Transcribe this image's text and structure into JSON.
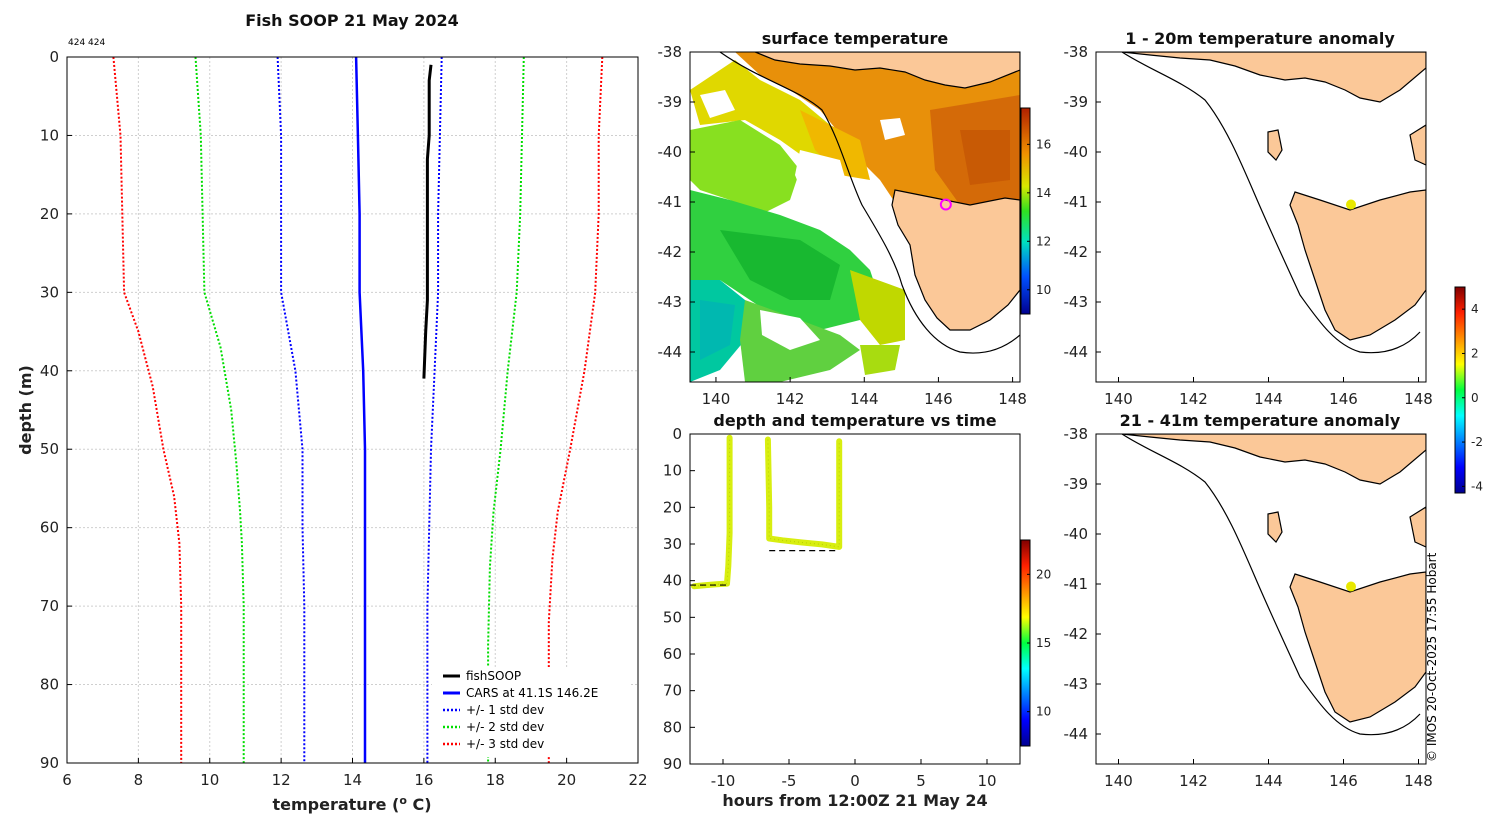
{
  "figure": {
    "title": "Fish SOOP 21 May 2024",
    "small_label": "424 424",
    "credit": "© IMOS 20-Oct-2025 17:55 Hobart"
  },
  "chart_data": [
    {
      "id": "profile",
      "type": "line",
      "title": "Fish SOOP 21 May 2024",
      "xlabel": "temperature (o C)",
      "xlabel_main": "temperature (",
      "xlabel_sup": "o",
      "xlabel_end": " C)",
      "ylabel": "depth (m)",
      "xlim": [
        6,
        22
      ],
      "ylim": [
        0,
        90
      ],
      "y_inverted": true,
      "xticks": [
        6,
        8,
        10,
        12,
        14,
        16,
        18,
        20,
        22
      ],
      "yticks": [
        0,
        10,
        20,
        30,
        40,
        50,
        60,
        70,
        80,
        90
      ],
      "grid": true,
      "legend_position": "bottom-right",
      "series": [
        {
          "name": "fishSOOP",
          "color": "#000000",
          "style": "solid",
          "width": 3,
          "points": [
            [
              16.2,
              1
            ],
            [
              16.15,
              3
            ],
            [
              16.15,
              6
            ],
            [
              16.15,
              10
            ],
            [
              16.1,
              13
            ],
            [
              16.1,
              18
            ],
            [
              16.1,
              23
            ],
            [
              16.1,
              28
            ],
            [
              16.1,
              31
            ],
            [
              16.05,
              35
            ],
            [
              16.0,
              41
            ]
          ]
        },
        {
          "name": "CARS at 41.1S 146.2E",
          "color": "#0000ff",
          "style": "solid",
          "width": 2.5,
          "points": [
            [
              14.1,
              0
            ],
            [
              14.15,
              10
            ],
            [
              14.2,
              20
            ],
            [
              14.2,
              30
            ],
            [
              14.3,
              40
            ],
            [
              14.35,
              50
            ],
            [
              14.35,
              60
            ],
            [
              14.35,
              70
            ],
            [
              14.35,
              80
            ],
            [
              14.35,
              90
            ]
          ]
        },
        {
          "name": "+/- 1 std dev",
          "color": "#0000ff",
          "style": "dotted",
          "width": 2,
          "points": [
            [
              11.9,
              0
            ],
            [
              12.0,
              10
            ],
            [
              12.0,
              20
            ],
            [
              12.0,
              30
            ],
            [
              12.4,
              40
            ],
            [
              12.6,
              50
            ],
            [
              12.6,
              60
            ],
            [
              12.65,
              70
            ],
            [
              12.65,
              80
            ],
            [
              12.65,
              90
            ]
          ],
          "points2": [
            [
              16.5,
              0
            ],
            [
              16.45,
              10
            ],
            [
              16.4,
              20
            ],
            [
              16.4,
              30
            ],
            [
              16.3,
              40
            ],
            [
              16.2,
              50
            ],
            [
              16.15,
              60
            ],
            [
              16.1,
              70
            ],
            [
              16.1,
              80
            ],
            [
              16.1,
              90
            ]
          ]
        },
        {
          "name": "+/- 2 std dev",
          "color": "#00dd00",
          "style": "dotted",
          "width": 2,
          "points": [
            [
              9.6,
              0
            ],
            [
              9.75,
              10
            ],
            [
              9.8,
              20
            ],
            [
              9.85,
              30
            ],
            [
              10.3,
              37
            ],
            [
              10.6,
              45
            ],
            [
              10.75,
              52
            ],
            [
              10.85,
              58
            ],
            [
              10.9,
              62
            ],
            [
              10.95,
              70
            ],
            [
              10.95,
              90
            ]
          ],
          "points2": [
            [
              18.8,
              0
            ],
            [
              18.75,
              10
            ],
            [
              18.7,
              20
            ],
            [
              18.6,
              30
            ],
            [
              18.35,
              40
            ],
            [
              18.15,
              50
            ],
            [
              17.95,
              58
            ],
            [
              17.85,
              65
            ],
            [
              17.8,
              75
            ],
            [
              17.8,
              90
            ]
          ]
        },
        {
          "name": "+/- 3 std dev",
          "color": "#ff0000",
          "style": "dotted",
          "width": 2,
          "points": [
            [
              7.3,
              0
            ],
            [
              7.5,
              10
            ],
            [
              7.55,
              20
            ],
            [
              7.6,
              30
            ],
            [
              8.0,
              35
            ],
            [
              8.4,
              42
            ],
            [
              8.7,
              50
            ],
            [
              9.0,
              56
            ],
            [
              9.15,
              62
            ],
            [
              9.2,
              70
            ],
            [
              9.2,
              90
            ]
          ],
          "points2": [
            [
              21.0,
              0
            ],
            [
              20.9,
              10
            ],
            [
              20.9,
              20
            ],
            [
              20.8,
              30
            ],
            [
              20.5,
              40
            ],
            [
              20.1,
              50
            ],
            [
              19.75,
              58
            ],
            [
              19.6,
              64
            ],
            [
              19.5,
              72
            ],
            [
              19.5,
              90
            ]
          ]
        }
      ]
    },
    {
      "id": "sst_map",
      "type": "heatmap",
      "title": "surface temperature",
      "xlim": [
        139.3,
        148.2
      ],
      "ylim": [
        -44.6,
        -38
      ],
      "xticks": [
        140,
        142,
        144,
        146,
        148
      ],
      "yticks": [
        -38,
        -39,
        -40,
        -41,
        -42,
        -43,
        -44
      ],
      "colorbar": {
        "range": [
          9,
          17.5
        ],
        "ticks": [
          10,
          12,
          14,
          16
        ]
      },
      "marker": {
        "lon": 146.2,
        "lat": -41.05
      }
    },
    {
      "id": "depth_time",
      "type": "scatter",
      "title": "depth and temperature vs time",
      "xlabel": "hours from 12:00Z 21 May 24",
      "xlim": [
        -12.5,
        12.5
      ],
      "ylim": [
        0,
        90
      ],
      "y_inverted": true,
      "xticks": [
        -10,
        -5,
        0,
        5,
        10
      ],
      "yticks": [
        0,
        10,
        20,
        30,
        40,
        50,
        60,
        70,
        80,
        90
      ],
      "colorbar": {
        "range": [
          7.5,
          22.5
        ],
        "ticks": [
          10,
          15,
          20
        ]
      },
      "segments": [
        [
          [
            -12.2,
            41.5
          ],
          [
            -11.5,
            41.3
          ],
          [
            -10.5,
            41.0
          ],
          [
            -9.7,
            40.8
          ],
          [
            -9.6,
            36
          ],
          [
            -9.55,
            32
          ],
          [
            -9.5,
            27
          ],
          [
            -9.5,
            20
          ],
          [
            -9.5,
            12
          ],
          [
            -9.5,
            5
          ],
          [
            -9.5,
            1
          ]
        ],
        [
          [
            -6.6,
            1.5
          ],
          [
            -6.55,
            10
          ],
          [
            -6.5,
            20
          ],
          [
            -6.5,
            28.5
          ],
          [
            -5.5,
            29
          ],
          [
            -4.0,
            29.6
          ],
          [
            -2.5,
            30.1
          ],
          [
            -1.2,
            30.8
          ],
          [
            -1.2,
            24
          ],
          [
            -1.2,
            15
          ],
          [
            -1.2,
            8
          ],
          [
            -1.2,
            2
          ]
        ]
      ],
      "dashed": [
        [
          [
            -12.5,
            41.2
          ],
          [
            -9.5,
            41.2
          ]
        ],
        [
          [
            -6.5,
            31.8
          ],
          [
            -1.2,
            31.8
          ]
        ]
      ]
    },
    {
      "id": "anom_1_20",
      "type": "heatmap",
      "title": "1 - 20m temperature anomaly",
      "xlim": [
        139.4,
        148.2
      ],
      "ylim": [
        -44.6,
        -38
      ],
      "xticks": [
        140,
        142,
        144,
        146,
        148
      ],
      "yticks": [
        -38,
        -39,
        -40,
        -41,
        -42,
        -43,
        -44
      ],
      "marker": {
        "lon": 146.2,
        "lat": -41.05
      }
    },
    {
      "id": "anom_21_41",
      "type": "heatmap",
      "title": "21 - 41m temperature anomaly",
      "xlim": [
        139.4,
        148.2
      ],
      "ylim": [
        -44.6,
        -38
      ],
      "xticks": [
        140,
        142,
        144,
        146,
        148
      ],
      "yticks": [
        -38,
        -39,
        -40,
        -41,
        -42,
        -43,
        -44
      ],
      "marker": {
        "lon": 146.2,
        "lat": -41.05
      },
      "colorbar": {
        "range": [
          -4.3,
          5
        ],
        "ticks": [
          -4,
          -2,
          0,
          2,
          4
        ]
      }
    }
  ]
}
